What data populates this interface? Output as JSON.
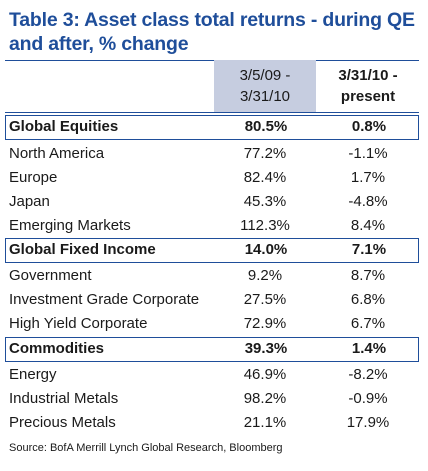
{
  "title": "Table 3: Asset class total returns - during QE and after, % change",
  "columns": {
    "c1": [
      "3/5/09 -",
      "3/31/10"
    ],
    "c2": [
      "3/31/10 -",
      "present"
    ]
  },
  "rows": [
    {
      "label": "Global Equities",
      "v1": "80.5%",
      "v2": "0.8%",
      "group": true
    },
    {
      "label": "North America",
      "v1": "77.2%",
      "v2": "-1.1%"
    },
    {
      "label": "Europe",
      "v1": "82.4%",
      "v2": "1.7%"
    },
    {
      "label": "Japan",
      "v1": "45.3%",
      "v2": "-4.8%"
    },
    {
      "label": "Emerging Markets",
      "v1": "112.3%",
      "v2": "8.4%"
    },
    {
      "label": "Global Fixed Income",
      "v1": "14.0%",
      "v2": "7.1%",
      "group": true
    },
    {
      "label": "Government",
      "v1": "9.2%",
      "v2": "8.7%"
    },
    {
      "label": "Investment Grade Corporate",
      "v1": "27.5%",
      "v2": "6.8%"
    },
    {
      "label": "High Yield Corporate",
      "v1": "72.9%",
      "v2": "6.7%"
    },
    {
      "label": "Commodities",
      "v1": "39.3%",
      "v2": "1.4%",
      "group": true
    },
    {
      "label": "Energy",
      "v1": "46.9%",
      "v2": "-8.2%"
    },
    {
      "label": "Industrial Metals",
      "v1": "98.2%",
      "v2": "-0.9%"
    },
    {
      "label": "Precious Metals",
      "v1": "21.1%",
      "v2": "17.9%"
    }
  ],
  "source": "Source: BofA Merrill Lynch Global Research, Bloomberg",
  "colors": {
    "title": "#1f4e9a",
    "header_shade": "#c6cde0",
    "group_border": "#1f4e9a"
  }
}
